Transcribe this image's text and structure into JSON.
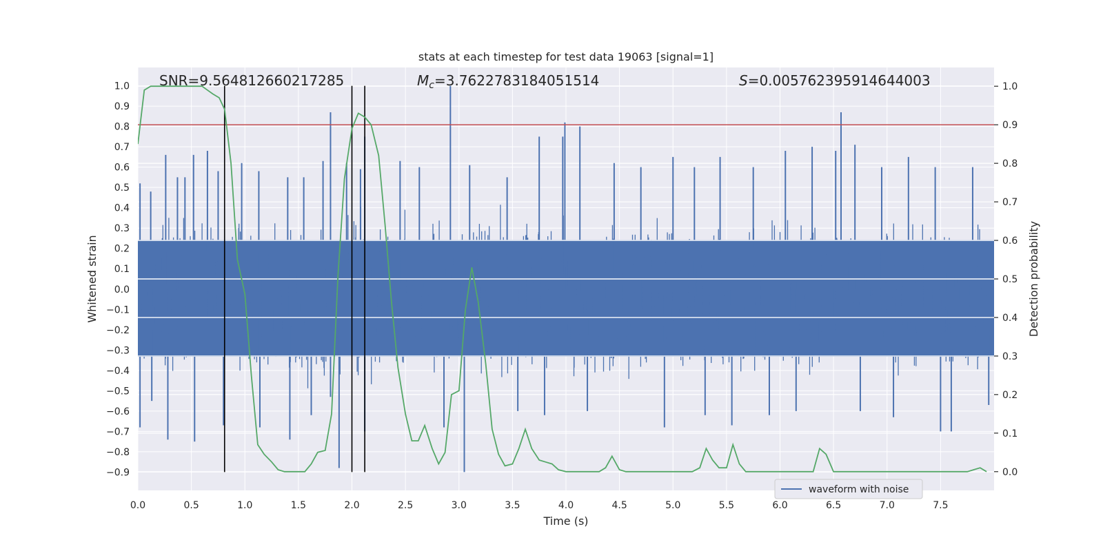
{
  "chart_data": {
    "type": "line",
    "title": "stats at each timestep for test data 19063 [signal=1]",
    "xlabel": "Time (s)",
    "ylabel_left": "Whitened strain",
    "ylabel_right": "Detection probability",
    "xlim": [
      0.0,
      8.0
    ],
    "ylim_left": [
      -0.99,
      1.09
    ],
    "ylim_right": [
      -0.0486,
      1.0486
    ],
    "x_ticks": [
      "0.0",
      "0.5",
      "1.0",
      "1.5",
      "2.0",
      "2.5",
      "3.0",
      "3.5",
      "4.0",
      "4.5",
      "5.0",
      "5.5",
      "6.0",
      "6.5",
      "7.0",
      "7.5"
    ],
    "y_left_ticks": [
      "-0.9",
      "-0.8",
      "-0.7",
      "-0.6",
      "-0.5",
      "-0.4",
      "-0.3",
      "-0.2",
      "-0.1",
      "0.0",
      "0.1",
      "0.2",
      "0.3",
      "0.4",
      "0.5",
      "0.6",
      "0.7",
      "0.8",
      "0.9",
      "1.0"
    ],
    "y_right_ticks": [
      "0.0",
      "0.1",
      "0.2",
      "0.3",
      "0.4",
      "0.5",
      "0.6",
      "0.7",
      "0.8",
      "0.9",
      "1.0"
    ],
    "annotations": {
      "snr": "SNR=9.564812660217285",
      "mc_symbol": "M",
      "mc_sub": "c",
      "mc_value": "=3.7622783184051514",
      "s_symbol": "S",
      "s_value": "=0.005762395914644003"
    },
    "threshold_right": 0.9,
    "vlines_x": [
      0.81,
      2.0,
      2.12
    ],
    "vline_y_range_left": [
      -0.9,
      1.0
    ],
    "waveform": {
      "name": "waveform with noise",
      "color": "#4c72b0",
      "dense_band": [
        -0.33,
        0.24
      ],
      "spikes": [
        {
          "x": 0.02,
          "v": 0.52
        },
        {
          "x": 0.02,
          "v": -0.68
        },
        {
          "x": 0.12,
          "v": 0.48
        },
        {
          "x": 0.13,
          "v": -0.55
        },
        {
          "x": 0.26,
          "v": 0.66
        },
        {
          "x": 0.28,
          "v": -0.74
        },
        {
          "x": 0.37,
          "v": 0.55
        },
        {
          "x": 0.44,
          "v": 0.55
        },
        {
          "x": 0.52,
          "v": 0.66
        },
        {
          "x": 0.53,
          "v": -0.75
        },
        {
          "x": 0.65,
          "v": 0.68
        },
        {
          "x": 0.75,
          "v": 0.58
        },
        {
          "x": 0.8,
          "v": -0.67
        },
        {
          "x": 0.97,
          "v": 0.62
        },
        {
          "x": 1.13,
          "v": 0.58
        },
        {
          "x": 1.14,
          "v": -0.68
        },
        {
          "x": 1.4,
          "v": 0.55
        },
        {
          "x": 1.42,
          "v": -0.74
        },
        {
          "x": 1.55,
          "v": 0.55
        },
        {
          "x": 1.62,
          "v": -0.62
        },
        {
          "x": 1.73,
          "v": 0.63
        },
        {
          "x": 1.8,
          "v": 0.87
        },
        {
          "x": 1.8,
          "v": -0.53
        },
        {
          "x": 1.88,
          "v": -0.88
        },
        {
          "x": 1.95,
          "v": 0.62
        },
        {
          "x": 2.08,
          "v": 0.59
        },
        {
          "x": 2.12,
          "v": 0.75
        },
        {
          "x": 2.12,
          "v": -0.7
        },
        {
          "x": 2.45,
          "v": 0.63
        },
        {
          "x": 2.63,
          "v": 0.6
        },
        {
          "x": 2.86,
          "v": -0.68
        },
        {
          "x": 2.92,
          "v": 1.0
        },
        {
          "x": 3.05,
          "v": -0.9
        },
        {
          "x": 3.1,
          "v": 0.61
        },
        {
          "x": 3.45,
          "v": 0.55
        },
        {
          "x": 3.55,
          "v": -0.6
        },
        {
          "x": 3.75,
          "v": 0.75
        },
        {
          "x": 3.8,
          "v": -0.62
        },
        {
          "x": 3.97,
          "v": 0.75
        },
        {
          "x": 3.99,
          "v": 0.82
        },
        {
          "x": 4.13,
          "v": 0.8
        },
        {
          "x": 4.2,
          "v": -0.6
        },
        {
          "x": 4.45,
          "v": 0.62
        },
        {
          "x": 4.7,
          "v": 0.6
        },
        {
          "x": 4.92,
          "v": -0.68
        },
        {
          "x": 5.0,
          "v": 0.65
        },
        {
          "x": 5.2,
          "v": 0.6
        },
        {
          "x": 5.3,
          "v": -0.62
        },
        {
          "x": 5.44,
          "v": 0.65
        },
        {
          "x": 5.55,
          "v": -0.67
        },
        {
          "x": 5.75,
          "v": 0.6
        },
        {
          "x": 5.9,
          "v": -0.62
        },
        {
          "x": 6.05,
          "v": 0.68
        },
        {
          "x": 6.15,
          "v": -0.6
        },
        {
          "x": 6.3,
          "v": 0.7
        },
        {
          "x": 6.52,
          "v": 0.68
        },
        {
          "x": 6.57,
          "v": 0.87
        },
        {
          "x": 6.7,
          "v": 0.71
        },
        {
          "x": 6.75,
          "v": -0.6
        },
        {
          "x": 6.95,
          "v": 0.6
        },
        {
          "x": 7.06,
          "v": -0.63
        },
        {
          "x": 7.2,
          "v": 0.65
        },
        {
          "x": 7.45,
          "v": 0.6
        },
        {
          "x": 7.5,
          "v": -0.7
        },
        {
          "x": 7.6,
          "v": -0.7
        },
        {
          "x": 7.8,
          "v": 0.6
        },
        {
          "x": 7.95,
          "v": -0.57
        }
      ]
    },
    "probability": {
      "name": "detection probability",
      "color": "#55a868",
      "x": [
        0.0,
        0.06,
        0.12,
        0.2,
        0.3,
        0.4,
        0.5,
        0.6,
        0.65,
        0.7,
        0.76,
        0.81,
        0.87,
        0.93,
        1.0,
        1.06,
        1.12,
        1.18,
        1.25,
        1.31,
        1.37,
        1.43,
        1.5,
        1.56,
        1.62,
        1.68,
        1.75,
        1.81,
        1.87,
        1.93,
        2.0,
        2.06,
        2.12,
        2.18,
        2.25,
        2.31,
        2.37,
        2.43,
        2.5,
        2.56,
        2.62,
        2.68,
        2.75,
        2.81,
        2.87,
        2.93,
        3.0,
        3.06,
        3.12,
        3.18,
        3.25,
        3.31,
        3.37,
        3.43,
        3.5,
        3.56,
        3.62,
        3.68,
        3.75,
        3.81,
        3.87,
        3.93,
        4.0,
        4.06,
        4.12,
        4.18,
        4.25,
        4.31,
        4.37,
        4.43,
        4.5,
        4.56,
        4.62,
        4.68,
        4.75,
        4.81,
        4.87,
        4.93,
        5.0,
        5.06,
        5.12,
        5.18,
        5.25,
        5.31,
        5.37,
        5.43,
        5.5,
        5.56,
        5.62,
        5.68,
        5.75,
        5.81,
        5.87,
        5.93,
        6.0,
        6.06,
        6.12,
        6.18,
        6.25,
        6.31,
        6.37,
        6.43,
        6.5,
        6.56,
        6.62,
        6.68,
        6.75,
        6.81,
        6.87,
        6.93,
        7.0,
        7.06,
        7.12,
        7.18,
        7.25,
        7.31,
        7.37,
        7.43,
        7.5,
        7.56,
        7.62,
        7.68,
        7.75,
        7.81,
        7.87,
        7.93
      ],
      "y": [
        0.85,
        0.99,
        1.0,
        1.0,
        1.0,
        1.0,
        1.0,
        1.0,
        0.99,
        0.98,
        0.97,
        0.94,
        0.8,
        0.55,
        0.46,
        0.25,
        0.07,
        0.045,
        0.025,
        0.005,
        0.0,
        0.0,
        0.0,
        0.0,
        0.02,
        0.05,
        0.055,
        0.15,
        0.51,
        0.76,
        0.89,
        0.93,
        0.92,
        0.9,
        0.82,
        0.64,
        0.44,
        0.27,
        0.15,
        0.08,
        0.08,
        0.12,
        0.06,
        0.02,
        0.05,
        0.2,
        0.21,
        0.42,
        0.53,
        0.44,
        0.28,
        0.11,
        0.045,
        0.015,
        0.02,
        0.06,
        0.11,
        0.06,
        0.03,
        0.025,
        0.02,
        0.005,
        0.0,
        0.0,
        0.0,
        0.0,
        0.0,
        0.0,
        0.01,
        0.04,
        0.005,
        0.0,
        0.0,
        0.0,
        0.0,
        0.0,
        0.0,
        0.0,
        0.0,
        0.0,
        0.0,
        0.0,
        0.01,
        0.06,
        0.03,
        0.01,
        0.01,
        0.07,
        0.02,
        0.0,
        0.0,
        0.0,
        0.0,
        0.0,
        0.0,
        0.0,
        0.0,
        0.0,
        0.0,
        0.0,
        0.06,
        0.045,
        0.0,
        0.0,
        0.0,
        0.0,
        0.0,
        0.0,
        0.0,
        0.0,
        0.0,
        0.0,
        0.0,
        0.0,
        0.0,
        0.0,
        0.0,
        0.0,
        0.0,
        0.0,
        0.0,
        0.0,
        0.0,
        0.005,
        0.01,
        0.0
      ]
    },
    "legend": {
      "position": "lower-right",
      "entries": [
        "waveform with noise"
      ]
    },
    "colors": {
      "background": "#eaeaf2",
      "grid": "#ffffff",
      "threshold": "#c44e52",
      "vlines": "#000000"
    },
    "grid": true
  }
}
